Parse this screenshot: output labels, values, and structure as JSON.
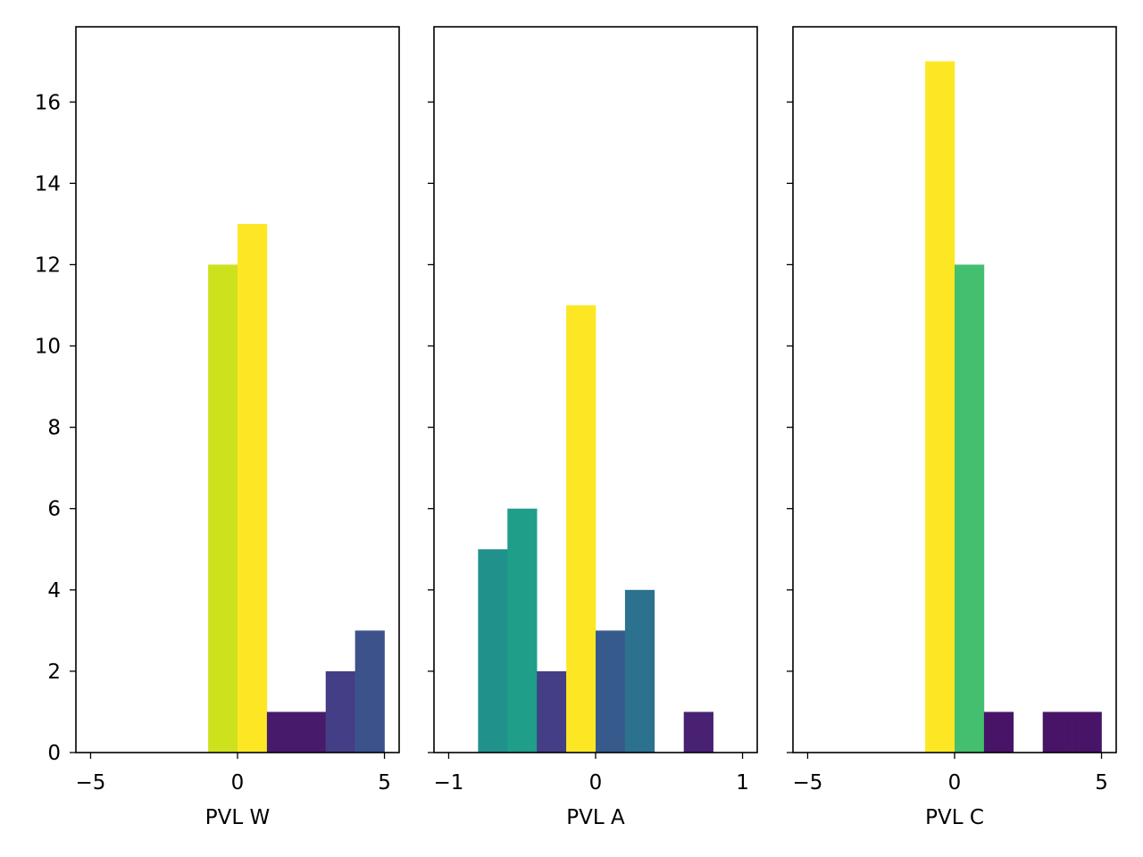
{
  "figure": {
    "background": "#ffffff",
    "shared_y": true
  },
  "chart_data": [
    {
      "type": "bar",
      "xlabel": "PVL W",
      "ylabel": "",
      "xlim": [
        -5.5,
        5.5
      ],
      "ylim": [
        0,
        17.85
      ],
      "xticks": [
        -5,
        0,
        5
      ],
      "xtick_labels": [
        "−5",
        "0",
        "5"
      ],
      "yticks": [
        0,
        2,
        4,
        6,
        8,
        10,
        12,
        14,
        16
      ],
      "ytick_labels": [
        "0",
        "2",
        "4",
        "6",
        "8",
        "10",
        "12",
        "14",
        "16"
      ],
      "show_ytick_labels": true,
      "grid": false,
      "bin_width": 1,
      "bars": [
        {
          "x0": -5,
          "x1": -4,
          "value": 0,
          "color": "#440154"
        },
        {
          "x0": -4,
          "x1": -3,
          "value": 0,
          "color": "#440154"
        },
        {
          "x0": -3,
          "x1": -2,
          "value": 0,
          "color": "#440154"
        },
        {
          "x0": -2,
          "x1": -1,
          "value": 0,
          "color": "#440154"
        },
        {
          "x0": -1,
          "x1": 0,
          "value": 12,
          "color": "#cde11d"
        },
        {
          "x0": 0,
          "x1": 1,
          "value": 13,
          "color": "#fde725"
        },
        {
          "x0": 1,
          "x1": 2,
          "value": 1,
          "color": "#481a6c"
        },
        {
          "x0": 2,
          "x1": 3,
          "value": 1,
          "color": "#481a6c"
        },
        {
          "x0": 3,
          "x1": 4,
          "value": 2,
          "color": "#433e85"
        },
        {
          "x0": 4,
          "x1": 5,
          "value": 3,
          "color": "#3b528b"
        }
      ]
    },
    {
      "type": "bar",
      "xlabel": "PVL A",
      "ylabel": "",
      "xlim": [
        -1.1,
        1.1
      ],
      "ylim": [
        0,
        17.85
      ],
      "xticks": [
        -1,
        0,
        1
      ],
      "xtick_labels": [
        "−1",
        "0",
        "1"
      ],
      "yticks": [
        0,
        2,
        4,
        6,
        8,
        10,
        12,
        14,
        16
      ],
      "ytick_labels": [
        "0",
        "2",
        "4",
        "6",
        "8",
        "10",
        "12",
        "14",
        "16"
      ],
      "show_ytick_labels": false,
      "grid": false,
      "bin_width": 0.2,
      "bars": [
        {
          "x0": -1.0,
          "x1": -0.8,
          "value": 0,
          "color": "#440154"
        },
        {
          "x0": -0.8,
          "x1": -0.6,
          "value": 5,
          "color": "#21918c"
        },
        {
          "x0": -0.6,
          "x1": -0.4,
          "value": 6,
          "color": "#1f9e89"
        },
        {
          "x0": -0.4,
          "x1": -0.2,
          "value": 2,
          "color": "#433e85"
        },
        {
          "x0": -0.2,
          "x1": 0.0,
          "value": 11,
          "color": "#fde725"
        },
        {
          "x0": 0.0,
          "x1": 0.2,
          "value": 3,
          "color": "#375a8c"
        },
        {
          "x0": 0.2,
          "x1": 0.4,
          "value": 4,
          "color": "#2c728e"
        },
        {
          "x0": 0.4,
          "x1": 0.6,
          "value": 0,
          "color": "#440154"
        },
        {
          "x0": 0.6,
          "x1": 0.8,
          "value": 1,
          "color": "#482173"
        },
        {
          "x0": 0.8,
          "x1": 1.0,
          "value": 0,
          "color": "#440154"
        }
      ]
    },
    {
      "type": "bar",
      "xlabel": "PVL C",
      "ylabel": "",
      "xlim": [
        -5.5,
        5.5
      ],
      "ylim": [
        0,
        17.85
      ],
      "xticks": [
        -5,
        0,
        5
      ],
      "xtick_labels": [
        "−5",
        "0",
        "5"
      ],
      "yticks": [
        0,
        2,
        4,
        6,
        8,
        10,
        12,
        14,
        16
      ],
      "ytick_labels": [
        "0",
        "2",
        "4",
        "6",
        "8",
        "10",
        "12",
        "14",
        "16"
      ],
      "show_ytick_labels": false,
      "grid": false,
      "bin_width": 1,
      "bars": [
        {
          "x0": -5,
          "x1": -4,
          "value": 0,
          "color": "#440154"
        },
        {
          "x0": -4,
          "x1": -3,
          "value": 0,
          "color": "#440154"
        },
        {
          "x0": -3,
          "x1": -2,
          "value": 0,
          "color": "#440154"
        },
        {
          "x0": -2,
          "x1": -1,
          "value": 0,
          "color": "#440154"
        },
        {
          "x0": -1,
          "x1": 0,
          "value": 17,
          "color": "#fde725"
        },
        {
          "x0": 0,
          "x1": 1,
          "value": 12,
          "color": "#44bf70"
        },
        {
          "x0": 1,
          "x1": 2,
          "value": 1,
          "color": "#481467"
        },
        {
          "x0": 2,
          "x1": 3,
          "value": 0,
          "color": "#440154"
        },
        {
          "x0": 3,
          "x1": 4,
          "value": 1,
          "color": "#481467"
        },
        {
          "x0": 4,
          "x1": 5,
          "value": 1,
          "color": "#481467"
        }
      ]
    }
  ]
}
